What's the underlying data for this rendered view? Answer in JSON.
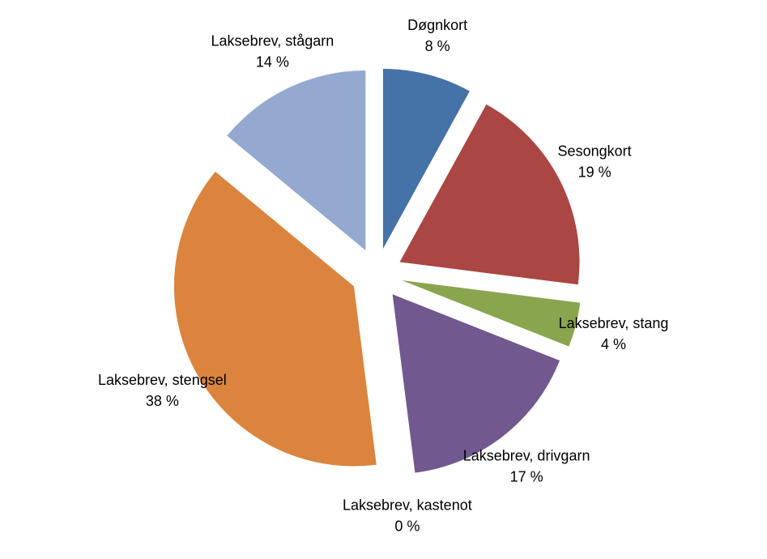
{
  "chart_data": {
    "type": "pie",
    "categories": [
      "Døgnkort",
      "Sesongkort",
      "Laksebrev, stang",
      "Laksebrev, drivgarn",
      "Laksebrev, kastenot",
      "Laksebrev, stengsel",
      "Laksebrev, stågarn"
    ],
    "values": [
      8,
      19,
      4,
      17,
      0,
      38,
      14
    ],
    "value_labels": [
      "8 %",
      "19 %",
      "4 %",
      "17 %",
      "0 %",
      "38 %",
      "14 %"
    ],
    "colors": [
      "#4572a7",
      "#aa4643",
      "#89a54e",
      "#71588f",
      "#4198af",
      "#db843d",
      "#93a9cf"
    ]
  }
}
